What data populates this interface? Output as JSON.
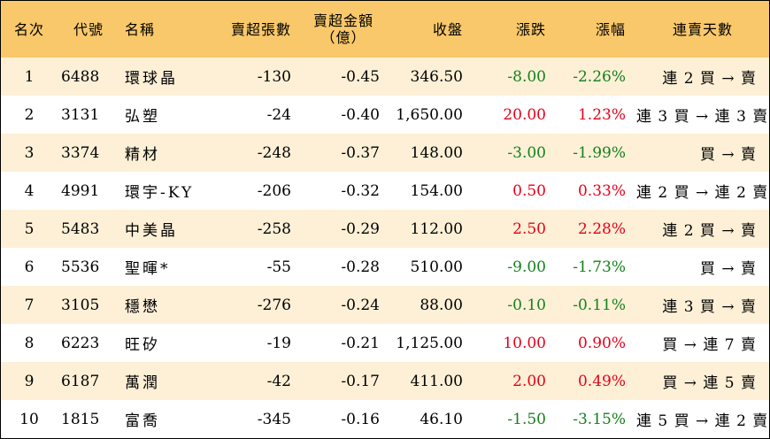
{
  "headers": {
    "rank": "名次",
    "code": "代號",
    "name": "名稱",
    "net_sell_lots": "賣超張數",
    "net_sell_amount_line1": "賣超金額",
    "net_sell_amount_line2": "（億）",
    "close": "收盤",
    "change": "漲跌",
    "change_pct": "漲幅",
    "streak": "連賣天數"
  },
  "rows": [
    {
      "rank": "1",
      "code": "6488",
      "name": "環球晶",
      "lots": "-130",
      "amount": "-0.45",
      "close": "346.50",
      "change": "-8.00",
      "pct": "-2.26%",
      "dir": "down",
      "streak": "連 2 買 → 賣"
    },
    {
      "rank": "2",
      "code": "3131",
      "name": "弘塑",
      "lots": "-24",
      "amount": "-0.40",
      "close": "1,650.00",
      "change": "20.00",
      "pct": "1.23%",
      "dir": "up",
      "streak": "連 3 買 → 連 3 賣"
    },
    {
      "rank": "3",
      "code": "3374",
      "name": "精材",
      "lots": "-248",
      "amount": "-0.37",
      "close": "148.00",
      "change": "-3.00",
      "pct": "-1.99%",
      "dir": "down",
      "streak": "買 → 賣"
    },
    {
      "rank": "4",
      "code": "4991",
      "name": "環宇-KY",
      "lots": "-206",
      "amount": "-0.32",
      "close": "154.00",
      "change": "0.50",
      "pct": "0.33%",
      "dir": "up",
      "streak": "連 2 買 → 連 2 賣"
    },
    {
      "rank": "5",
      "code": "5483",
      "name": "中美晶",
      "lots": "-258",
      "amount": "-0.29",
      "close": "112.00",
      "change": "2.50",
      "pct": "2.28%",
      "dir": "up",
      "streak": "連 2 買 → 賣"
    },
    {
      "rank": "6",
      "code": "5536",
      "name": "聖暉*",
      "lots": "-55",
      "amount": "-0.28",
      "close": "510.00",
      "change": "-9.00",
      "pct": "-1.73%",
      "dir": "down",
      "streak": "買 → 賣"
    },
    {
      "rank": "7",
      "code": "3105",
      "name": "穩懋",
      "lots": "-276",
      "amount": "-0.24",
      "close": "88.00",
      "change": "-0.10",
      "pct": "-0.11%",
      "dir": "down",
      "streak": "連 3 買 → 賣"
    },
    {
      "rank": "8",
      "code": "6223",
      "name": "旺矽",
      "lots": "-19",
      "amount": "-0.21",
      "close": "1,125.00",
      "change": "10.00",
      "pct": "0.90%",
      "dir": "up",
      "streak": "買 → 連 7 賣"
    },
    {
      "rank": "9",
      "code": "6187",
      "name": "萬潤",
      "lots": "-42",
      "amount": "-0.17",
      "close": "411.00",
      "change": "2.00",
      "pct": "0.49%",
      "dir": "up",
      "streak": "買 → 連 5 賣"
    },
    {
      "rank": "10",
      "code": "1815",
      "name": "富喬",
      "lots": "-345",
      "amount": "-0.16",
      "close": "46.10",
      "change": "-1.50",
      "pct": "-3.15%",
      "dir": "down",
      "streak": "連 5 買 → 連 2 賣"
    }
  ],
  "colors": {
    "up": "#e6001a",
    "down": "#15801d",
    "header_bg": "#f9c86a",
    "stripe_bg": "#fdf0d6"
  }
}
